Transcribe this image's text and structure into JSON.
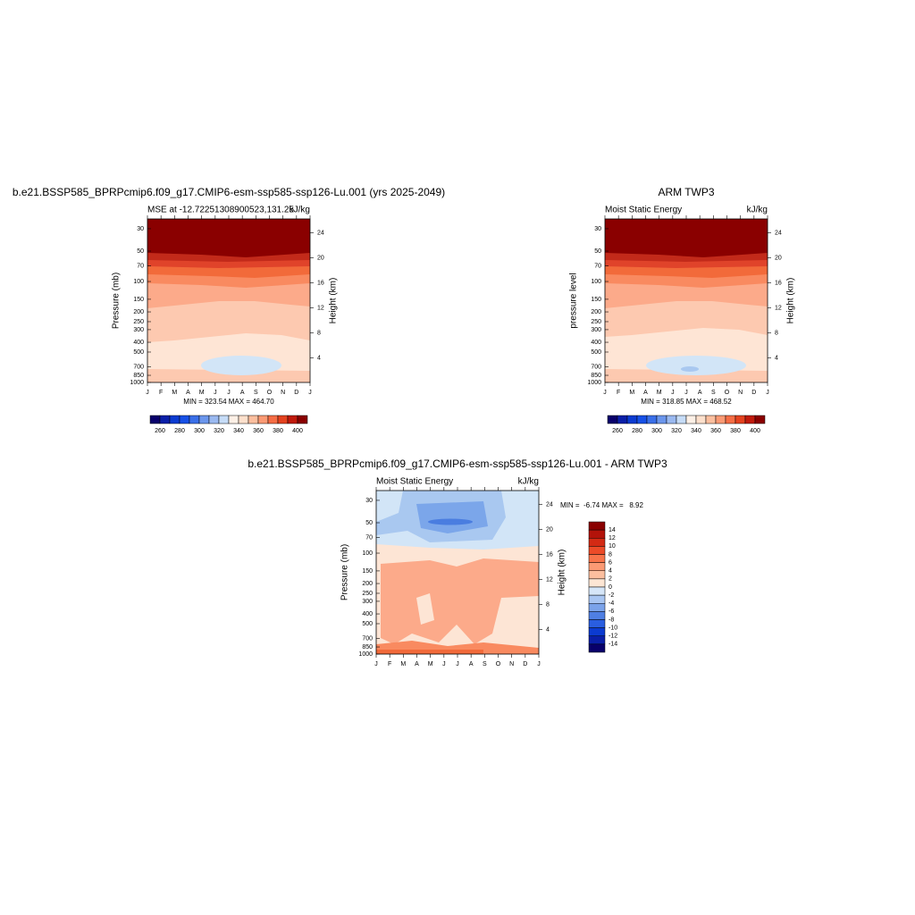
{
  "figure": {
    "panels": [
      {
        "title": "b.e21.BSSP585_BPRPcmip6.f09_g17.CMIP6-esm-ssp585-ssp126-Lu.001 (yrs 2025-2049)",
        "left_string": "MSE at -12.72251308900523,131.25",
        "right_string": "kJ/kg",
        "y_title": "Pressure (mb)",
        "y2_title": "Height (km)",
        "stats": "MIN = 323.54 MAX = 464.70"
      },
      {
        "title": "ARM TWP3",
        "left_string": "Moist Static Energy",
        "right_string": "kJ/kg",
        "y_title": "pressure level",
        "y2_title": "Height (km)",
        "stats": "MIN = 318.85 MAX = 468.52"
      },
      {
        "title": "b.e21.BSSP585_BPRPcmip6.f09_g17.CMIP6-esm-ssp585-ssp126-Lu.001 - ARM TWP3",
        "left_string": "Moist Static Energy",
        "right_string": "kJ/kg",
        "y_title": "Pressure (mb)",
        "y2_title": "Height (km)",
        "stats": "MIN =  -6.74 MAX =   8.92"
      }
    ],
    "months": [
      "J",
      "F",
      "M",
      "A",
      "M",
      "J",
      "J",
      "A",
      "S",
      "O",
      "N",
      "D",
      "J"
    ],
    "pressure_lim": [
      1000,
      24
    ],
    "pressure_ticks": [
      30,
      50,
      70,
      100,
      150,
      200,
      250,
      300,
      400,
      500,
      700,
      850,
      1000
    ],
    "height_ticks": [
      4,
      8,
      12,
      16,
      20,
      24
    ],
    "colorbar_abs": {
      "labels": [
        260,
        280,
        300,
        320,
        340,
        360,
        380,
        400
      ],
      "colors": [
        "#08006b",
        "#0a1fa8",
        "#0b3bd1",
        "#1750e6",
        "#3a6fe8",
        "#6b96ec",
        "#9ab9f0",
        "#c6dcf7",
        "#fdf0e6",
        "#fde0cc",
        "#fcbf9f",
        "#fb9a74",
        "#f56d45",
        "#e4421f",
        "#c01a0c",
        "#8a0000"
      ]
    },
    "colorbar_diff": {
      "labels": [
        14,
        12,
        10,
        8,
        6,
        4,
        2,
        0,
        -2,
        -4,
        -6,
        -8,
        -10,
        -12,
        -14
      ],
      "colors": [
        "#8a0000",
        "#b3130a",
        "#d32a14",
        "#ec4b28",
        "#f8744a",
        "#fb9a74",
        "#fcbf9f",
        "#fde6d4",
        "#d6e6f8",
        "#a9c6f2",
        "#7ba3ea",
        "#4f7fe3",
        "#2a5ee0",
        "#0b3bd1",
        "#0a1fa8",
        "#08006b"
      ]
    }
  }
}
